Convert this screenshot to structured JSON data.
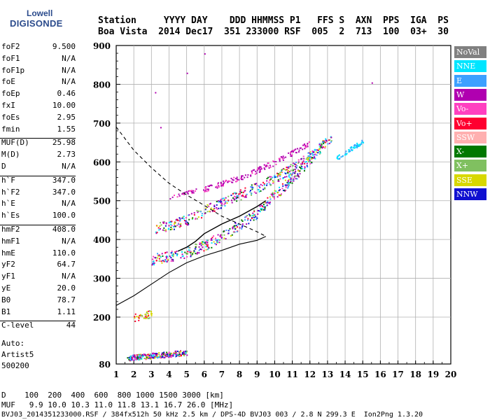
{
  "logo": {
    "top": "Lowell",
    "bottom": "DIGISONDE"
  },
  "header": {
    "line1": "Station     YYYY DAY    DDD HHMMSS P1   FFS S  AXN  PPS  IGA  PS",
    "line2": "Boa Vista  2014 Dec17  351 233000 RSF  005  2  713  100  03+  30"
  },
  "params": [
    {
      "k": "foF2",
      "v": "9.500"
    },
    {
      "k": "foF1",
      "v": "N/A"
    },
    {
      "k": "foF1p",
      "v": "N/A"
    },
    {
      "k": "foE",
      "v": "N/A"
    },
    {
      "k": "foEp",
      "v": "0.46"
    },
    {
      "k": "fxI",
      "v": "10.00"
    },
    {
      "k": "foEs",
      "v": "2.95"
    },
    {
      "k": "fmin",
      "v": "1.55"
    },
    {
      "k": "MUF(D)",
      "v": "25.98"
    },
    {
      "k": "M(D)",
      "v": "2.73"
    },
    {
      "k": "D",
      "v": "N/A"
    },
    {
      "k": "h`F",
      "v": "347.0"
    },
    {
      "k": "h`F2",
      "v": "347.0"
    },
    {
      "k": "h`E",
      "v": "N/A"
    },
    {
      "k": "h`Es",
      "v": "100.0"
    },
    {
      "k": "hmF2",
      "v": "408.0"
    },
    {
      "k": "hmF1",
      "v": "N/A"
    },
    {
      "k": "hmE",
      "v": "110.0"
    },
    {
      "k": "yF2",
      "v": "64.7"
    },
    {
      "k": "yF1",
      "v": "N/A"
    },
    {
      "k": "yE",
      "v": "20.0"
    },
    {
      "k": "B0",
      "v": "78.7"
    },
    {
      "k": "B1",
      "v": "1.11"
    },
    {
      "k": "C-level",
      "v": "44"
    }
  ],
  "auto": {
    "line1": "Auto:",
    "line2": "Artist5",
    "line3": "500200"
  },
  "legend": [
    {
      "label": "NoVal",
      "color": "#808080"
    },
    {
      "label": "NNE",
      "color": "#00e5ff"
    },
    {
      "label": "E",
      "color": "#3ca0ff"
    },
    {
      "label": "W",
      "color": "#b000b0"
    },
    {
      "label": "Vo-",
      "color": "#ff40c0"
    },
    {
      "label": "Vo+",
      "color": "#ff0030"
    },
    {
      "label": "SSW",
      "color": "#ffb0b0"
    },
    {
      "label": "X-",
      "color": "#007800"
    },
    {
      "label": "X+",
      "color": "#80c060"
    },
    {
      "label": "SSE",
      "color": "#d8d800"
    },
    {
      "label": "NNW",
      "color": "#1010d0"
    }
  ],
  "footer": {
    "line1": "D    100  200  400  600  800 1000 1500 3000 [km]",
    "line2": "MUF   9.9 10.0 10.3 11.0 11.8 13.1 16.7 26.0 [MHz]",
    "line3": "BVJ03_2014351233000.RSF / 384fx512h 50 kHz 2.5 km / DPS-4D BVJ03 003 / 2.8 N 299.3 E  Ion2Png 1.3.20"
  },
  "chart_data": {
    "type": "scatter",
    "title": "",
    "xlabel": "",
    "ylabel": "",
    "xlim": [
      1,
      20
    ],
    "ylim": [
      80,
      900
    ],
    "x_ticks": [
      1,
      2,
      3,
      4,
      5,
      6,
      7,
      8,
      9,
      10,
      11,
      12,
      13,
      14,
      15,
      16,
      17,
      18,
      19,
      20
    ],
    "y_ticks": [
      80,
      200,
      300,
      400,
      500,
      600,
      700,
      800,
      900
    ],
    "grid": true,
    "y_scale": "non-linear (ionogram virtual height)",
    "traces": [
      {
        "name": "o-trace F2",
        "points": [
          [
            3.0,
            350
          ],
          [
            4.0,
            358
          ],
          [
            5.0,
            368
          ],
          [
            6.0,
            385
          ],
          [
            7.0,
            410
          ],
          [
            8.0,
            440
          ],
          [
            9.0,
            470
          ],
          [
            9.6,
            500
          ],
          [
            10.2,
            525
          ],
          [
            11.0,
            560
          ],
          [
            12.0,
            610
          ],
          [
            12.8,
            650
          ]
        ]
      },
      {
        "name": "x-trace F2",
        "points": [
          [
            3.2,
            430
          ],
          [
            4.2,
            440
          ],
          [
            5.2,
            455
          ],
          [
            6.2,
            480
          ],
          [
            7.2,
            500
          ],
          [
            8.2,
            520
          ],
          [
            9.2,
            540
          ],
          [
            10.2,
            565
          ],
          [
            11.2,
            590
          ],
          [
            12.4,
            630
          ],
          [
            13.2,
            665
          ]
        ]
      },
      {
        "name": "upper echo",
        "points": [
          [
            4.0,
            510
          ],
          [
            5.0,
            520
          ],
          [
            6.0,
            530
          ],
          [
            7.0,
            545
          ],
          [
            8.0,
            560
          ],
          [
            9.0,
            580
          ],
          [
            10.0,
            600
          ],
          [
            11.0,
            625
          ],
          [
            12.0,
            650
          ]
        ]
      },
      {
        "name": "oblique E echoes",
        "points": [
          [
            13.5,
            610
          ],
          [
            14.0,
            625
          ],
          [
            14.5,
            640
          ],
          [
            15.0,
            655
          ]
        ]
      },
      {
        "name": "Es trace",
        "points": [
          [
            1.6,
            95
          ],
          [
            2.0,
            98
          ],
          [
            2.5,
            100
          ],
          [
            3.0,
            102
          ],
          [
            3.5,
            104
          ],
          [
            4.0,
            106
          ],
          [
            4.5,
            108
          ],
          [
            5.0,
            110
          ]
        ]
      },
      {
        "name": "low echo",
        "points": [
          [
            2.0,
            200
          ],
          [
            2.5,
            205
          ],
          [
            3.0,
            210
          ]
        ]
      },
      {
        "name": "sporadic",
        "points": [
          [
            3.2,
            780
          ],
          [
            3.5,
            690
          ],
          [
            5.0,
            830
          ],
          [
            6.0,
            880
          ],
          [
            15.5,
            805
          ]
        ]
      }
    ],
    "profile_curve": {
      "name": "electron density profile",
      "points": [
        [
          1.0,
          230
        ],
        [
          2.0,
          255
        ],
        [
          3.0,
          285
        ],
        [
          4.0,
          315
        ],
        [
          5.0,
          340
        ],
        [
          6.0,
          358
        ],
        [
          7.0,
          372
        ],
        [
          8.0,
          388
        ],
        [
          9.0,
          398
        ],
        [
          9.5,
          408
        ]
      ]
    },
    "model_curve_dashed": {
      "name": "dashed model",
      "points": [
        [
          1.0,
          690
        ],
        [
          2.0,
          630
        ],
        [
          3.0,
          585
        ],
        [
          4.0,
          545
        ],
        [
          5.0,
          515
        ],
        [
          6.0,
          488
        ],
        [
          7.0,
          460
        ],
        [
          8.0,
          440
        ],
        [
          9.0,
          420
        ],
        [
          9.5,
          408
        ]
      ]
    },
    "fitted_trace_solid": {
      "name": "fitted trace",
      "points": [
        [
          4.5,
          370
        ],
        [
          5.0,
          380
        ],
        [
          5.5,
          395
        ],
        [
          6.0,
          415
        ],
        [
          7.0,
          440
        ],
        [
          8.0,
          460
        ],
        [
          9.0,
          485
        ],
        [
          9.5,
          500
        ]
      ]
    }
  }
}
